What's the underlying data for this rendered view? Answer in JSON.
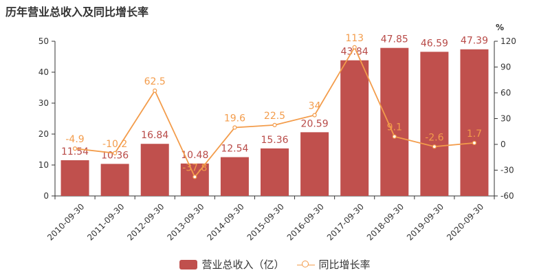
{
  "title": "历年营业总收入及同比增长率",
  "chart_data": {
    "type": "bar+line",
    "categories": [
      "2010-09-30",
      "2011-09-30",
      "2012-09-30",
      "2013-09-30",
      "2014-09-30",
      "2015-09-30",
      "2016-09-30",
      "2017-09-30",
      "2018-09-30",
      "2019-09-30",
      "2020-09-30"
    ],
    "series": [
      {
        "name": "营业总收入（亿）",
        "type": "bar",
        "axis": "left",
        "color": "#c0504d",
        "label_color": "#b84a47",
        "values": [
          11.54,
          10.36,
          16.84,
          10.48,
          12.54,
          15.36,
          20.59,
          43.84,
          47.85,
          46.59,
          47.39
        ]
      },
      {
        "name": "同比增长率",
        "type": "line",
        "axis": "right",
        "color": "#f39c4b",
        "values": [
          -4.9,
          -10.2,
          62.5,
          -37.8,
          19.6,
          22.5,
          34,
          113,
          9.1,
          -2.6,
          1.7
        ]
      }
    ],
    "y_left": {
      "min": 0,
      "max": 50,
      "ticks": [
        0,
        10,
        20,
        30,
        40,
        50
      ]
    },
    "y_right": {
      "min": -60,
      "max": 120,
      "ticks": [
        -60,
        -30,
        0,
        30,
        60,
        90,
        120
      ],
      "unit": "%"
    },
    "legend_position": "bottom"
  }
}
